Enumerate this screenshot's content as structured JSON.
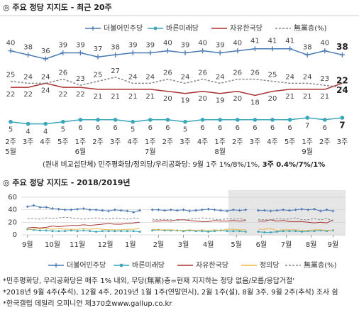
{
  "chart_data": [
    {
      "type": "line",
      "title": "◎ 주요 정당 지지도 - 최근 20주",
      "categories": [
        "2주",
        "3주",
        "4주",
        "5주",
        "1주",
        "2주",
        "3주",
        "4주",
        "1주",
        "2주",
        "3주",
        "4주",
        "1주",
        "2주",
        "3주",
        "4주",
        "5주",
        "1주",
        "2주",
        "3주"
      ],
      "months": [
        "5월",
        null,
        null,
        null,
        "6월",
        null,
        null,
        null,
        "7월",
        null,
        null,
        null,
        "8월",
        null,
        null,
        null,
        null,
        "9월",
        null,
        null
      ],
      "ylim": [
        0,
        50
      ],
      "series": [
        {
          "name": "더불어민주당",
          "color": "#4a7ab5",
          "marker": "plus",
          "values": [
            40,
            38,
            36,
            39,
            39,
            37,
            38,
            39,
            39,
            40,
            39,
            40,
            39,
            40,
            41,
            41,
            41,
            38,
            40,
            38
          ]
        },
        {
          "name": "바른미래당",
          "color": "#3aa6b9",
          "marker": "circle",
          "values": [
            5,
            4,
            4,
            5,
            6,
            6,
            6,
            5,
            6,
            6,
            5,
            6,
            6,
            6,
            6,
            6,
            6,
            7,
            6,
            7
          ]
        },
        {
          "name": "자유한국당",
          "color": "#a83232",
          "marker": "none",
          "values": [
            22,
            22,
            24,
            22,
            22,
            21,
            21,
            21,
            21,
            20,
            19,
            20,
            19,
            20,
            18,
            20,
            21,
            21,
            21,
            24
          ]
        },
        {
          "name": "無黨층(%)",
          "color": "#888888",
          "marker": "none",
          "dash": true,
          "values": [
            25,
            24,
            24,
            26,
            23,
            25,
            27,
            24,
            24,
            26,
            24,
            26,
            24,
            26,
            26,
            25,
            24,
            24,
            23,
            22
          ]
        }
      ],
      "note": {
        "text": "(원내 비교섭단체) 민주평화당/정의당/우리공화당: 9월 1주 1%/8%/1%, ",
        "bold": "3주 0.4%/7%/1%"
      }
    },
    {
      "type": "line",
      "title": "◎ 주요 정당 지지도 - 2018/2019년",
      "categories": [
        null,
        null,
        null,
        null,
        null,
        null,
        null,
        null,
        null,
        null,
        null,
        null,
        null,
        null,
        null,
        null,
        null,
        null,
        null,
        null,
        null,
        null,
        null,
        null,
        null,
        null,
        null,
        null,
        null,
        null,
        null,
        null,
        null,
        null,
        null,
        null,
        null,
        null,
        null,
        null,
        null,
        null,
        null,
        null,
        null,
        null,
        null,
        null,
        null,
        null
      ],
      "xlim": [
        -1,
        51
      ],
      "xticks": [
        {
          "value": 0,
          "label": "9월"
        },
        {
          "value": 4,
          "label": "10월"
        },
        {
          "value": 8,
          "label": "11월"
        },
        {
          "value": 12.5,
          "label": "12월"
        },
        {
          "value": 16.5,
          "label": "1월"
        },
        {
          "value": 21,
          "label": "2월"
        },
        {
          "value": 25,
          "label": "3월"
        },
        {
          "value": 29,
          "label": "4월"
        },
        {
          "value": 33.5,
          "label": "5월"
        },
        {
          "value": 37.5,
          "label": "6월"
        },
        {
          "value": 41.5,
          "label": "7월"
        },
        {
          "value": 45.5,
          "label": "8월"
        },
        {
          "value": 49,
          "label": "9월"
        }
      ],
      "ylim": [
        0,
        60
      ],
      "yticks": [
        0,
        20,
        40,
        60
      ],
      "grid": true,
      "series": [
        {
          "name": "더불어민주당",
          "color": "#4a7ab5",
          "marker": "plus",
          "values": [
            45,
            47,
            44,
            44,
            42,
            41,
            40,
            40,
            41,
            42,
            40,
            40,
            39,
            38,
            40,
            39,
            38,
            36,
            39,
            null,
            40,
            40,
            39,
            40,
            39,
            40,
            38,
            39,
            40,
            41,
            40,
            39,
            38,
            40,
            39,
            40,
            null,
            39,
            39,
            38,
            39,
            40,
            39,
            40,
            41,
            40,
            41,
            38,
            40,
            38
          ]
        },
        {
          "name": "바른미래당",
          "color": "#3aa6b9",
          "marker": "circle",
          "values": [
            9,
            8,
            7,
            7,
            6,
            6,
            6,
            7,
            6,
            7,
            6,
            5,
            6,
            6,
            6,
            6,
            6,
            6,
            5,
            null,
            7,
            8,
            7,
            7,
            7,
            6,
            7,
            6,
            6,
            5,
            6,
            7,
            6,
            6,
            6,
            5,
            null,
            5,
            4,
            4,
            5,
            6,
            6,
            6,
            5,
            6,
            6,
            7,
            6,
            7
          ]
        },
        {
          "name": "자유한국당",
          "color": "#a83232",
          "marker": "none",
          "values": [
            11,
            12,
            11,
            12,
            14,
            13,
            14,
            15,
            15,
            16,
            15,
            16,
            17,
            18,
            17,
            17,
            18,
            19,
            20,
            null,
            22,
            22,
            23,
            22,
            24,
            24,
            23,
            22,
            21,
            21,
            23,
            22,
            22,
            23,
            22,
            23,
            null,
            22,
            22,
            24,
            22,
            23,
            21,
            21,
            21,
            20,
            19,
            20,
            19,
            24
          ]
        },
        {
          "name": "정의당",
          "color": "#e8b84a",
          "marker": "none",
          "values": [
            9,
            9,
            10,
            10,
            9,
            10,
            9,
            9,
            9,
            10,
            9,
            10,
            9,
            8,
            8,
            8,
            9,
            9,
            10,
            null,
            9,
            8,
            8,
            8,
            7,
            7,
            8,
            7,
            8,
            7,
            8,
            7,
            9,
            9,
            8,
            8,
            null,
            9,
            9,
            10,
            7,
            8,
            8,
            8,
            7,
            7,
            8,
            8,
            7,
            7
          ]
        },
        {
          "name": "無黨층(%)",
          "color": "#888888",
          "marker": "none",
          "dash": true,
          "values": [
            26,
            26,
            25,
            27,
            26,
            27,
            28,
            27,
            26,
            25,
            26,
            27,
            26,
            25,
            27,
            26,
            25,
            27,
            26,
            null,
            25,
            24,
            25,
            24,
            23,
            24,
            25,
            26,
            27,
            26,
            25,
            24,
            26,
            25,
            26,
            24,
            null,
            25,
            24,
            24,
            26,
            25,
            25,
            27,
            24,
            24,
            26,
            24,
            26,
            22
          ]
        }
      ]
    }
  ],
  "notes": [
    "*민주평화당, 우리공화당은 매주 1% 내외, 무당(無黨)층=현재 지지하는 정당 없음/모름/응답거절'",
    "*2018년 9월 4주(추석), 12월 4주, 2019년 1월 1주(연말연시), 2월 1주(설), 8월 3주, 9월 2주(추석) 조사 쉼",
    "*한국갤럽 데일리 오피니언 제370호www.gallup.co.kr"
  ]
}
